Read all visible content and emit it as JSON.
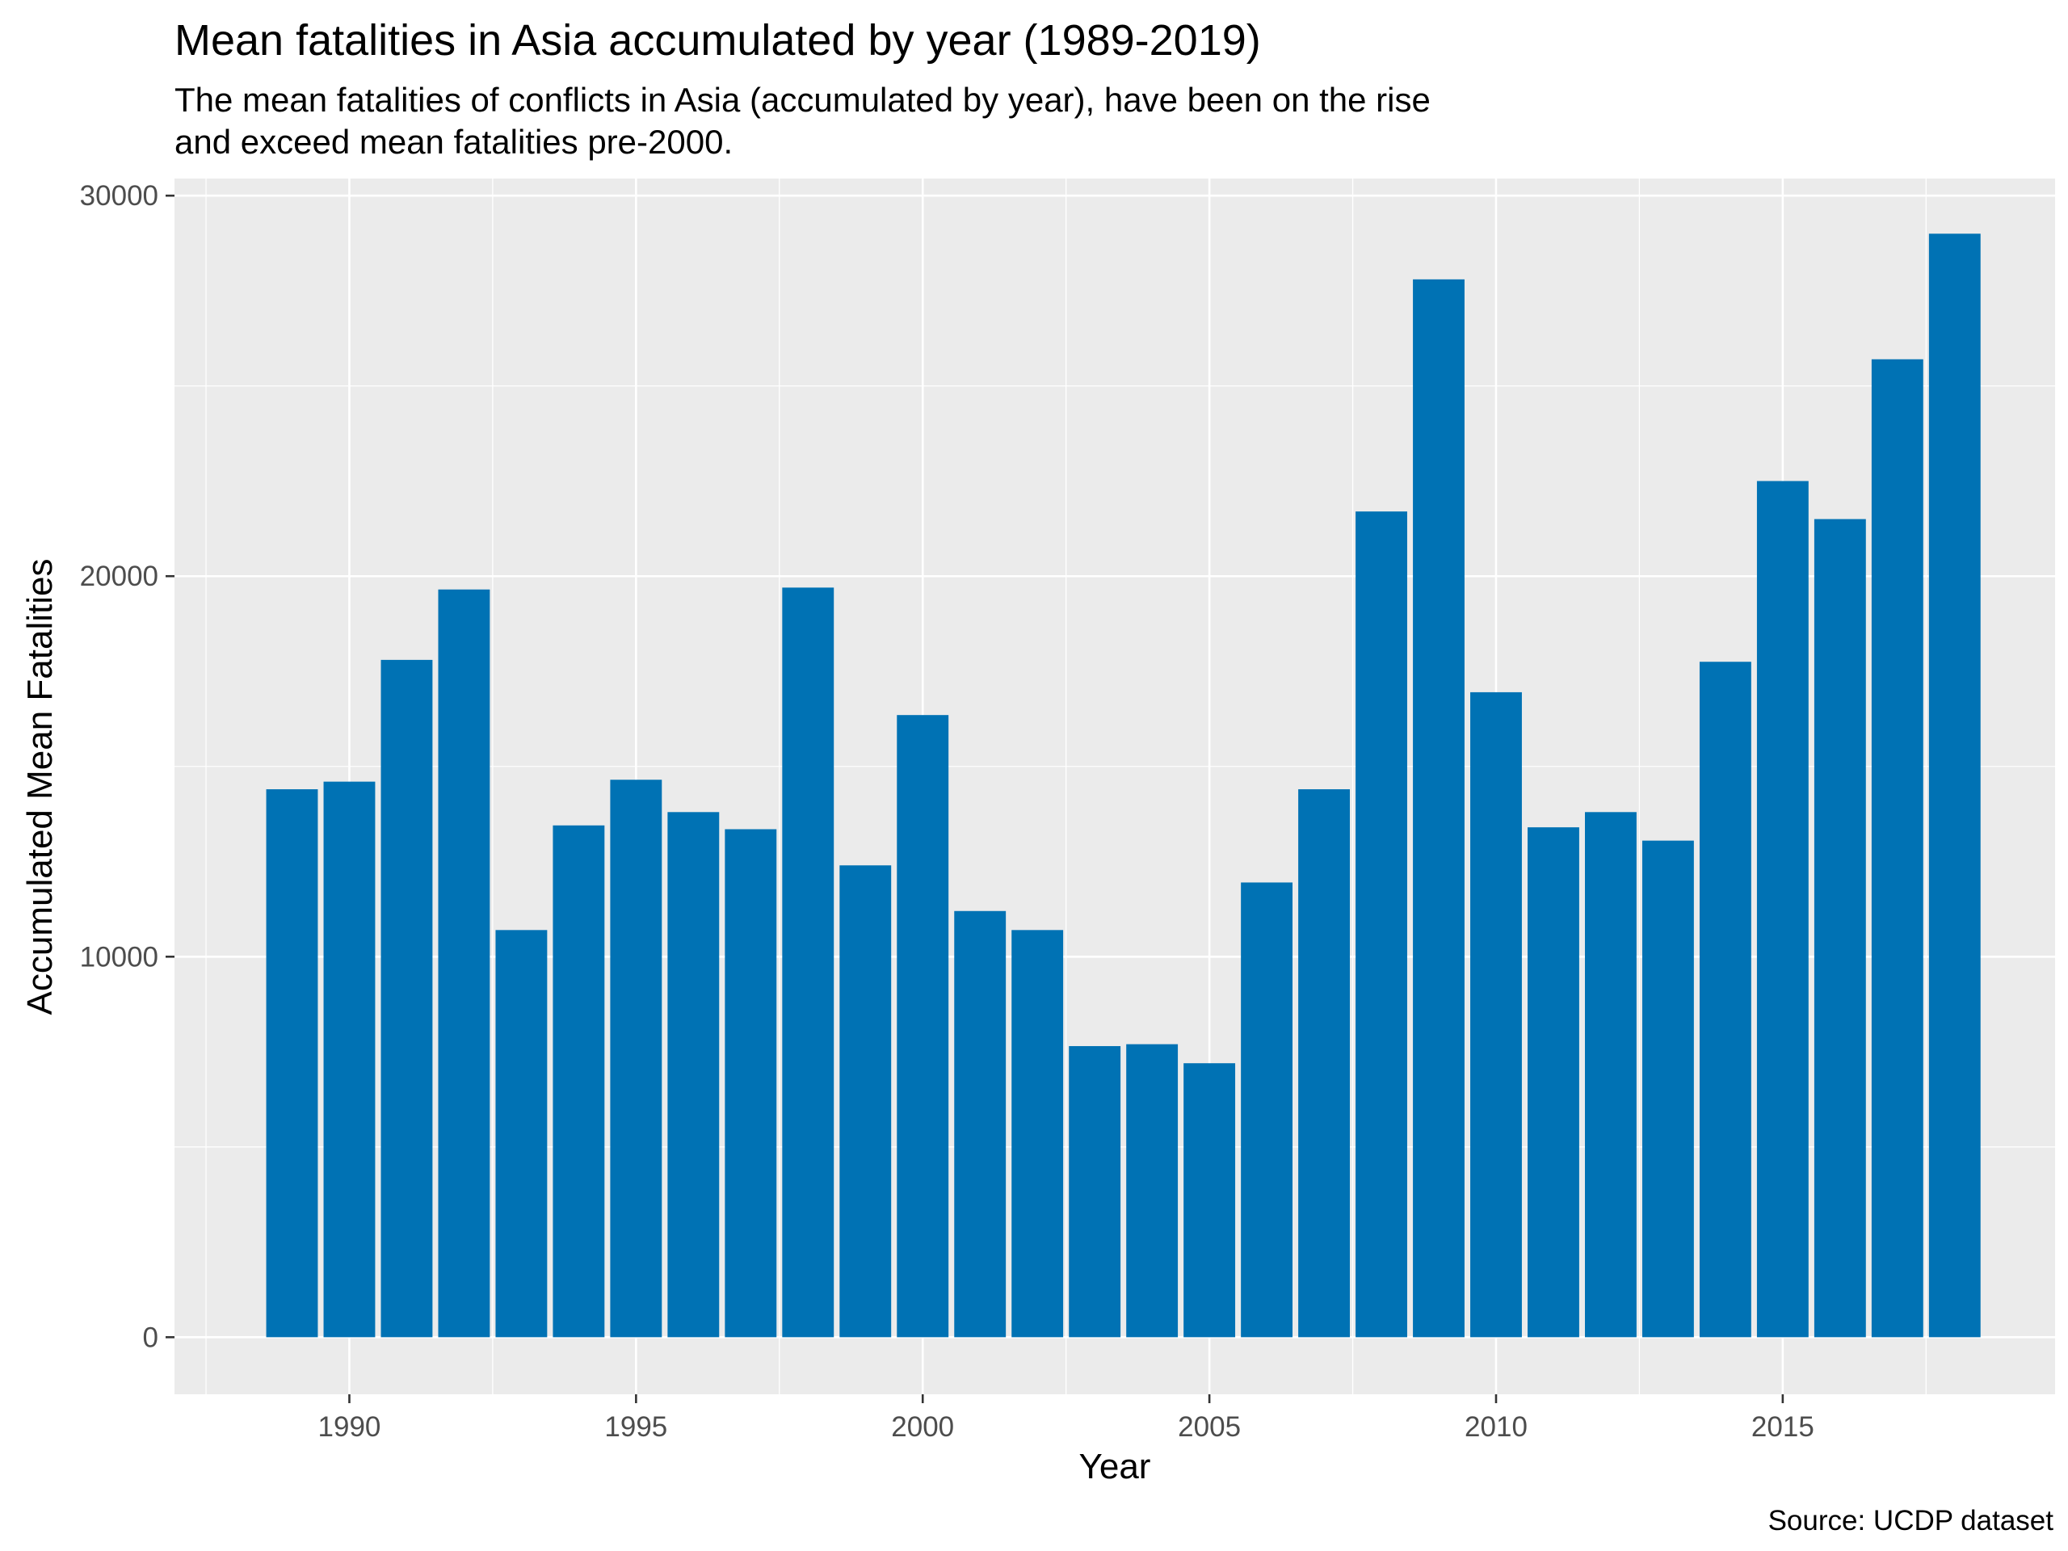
{
  "chart_data": {
    "type": "bar",
    "title": "Mean fatalities in Asia accumulated by year (1989-2019)",
    "subtitle": [
      "The mean fatalities of conflicts in Asia (accumulated by year), have been on the rise",
      "and exceed mean fatalities pre-2000."
    ],
    "caption": "Source: UCDP dataset",
    "xlabel": "Year",
    "ylabel": "Accumulated Mean Fatalities",
    "xlim": [
      1986.95,
      2019.75
    ],
    "ylim": [
      -1500,
      30450
    ],
    "x_ticks": [
      1990,
      1995,
      2000,
      2005,
      2010,
      2015
    ],
    "y_ticks": [
      0,
      10000,
      20000,
      30000
    ],
    "grid": true,
    "legend": "none",
    "bar_color": "#0072B4",
    "categories": [
      1989,
      1990,
      1991,
      1992,
      1993,
      1994,
      1995,
      1996,
      1997,
      1998,
      1999,
      2000,
      2001,
      2002,
      2003,
      2004,
      2005,
      2006,
      2007,
      2008,
      2009,
      2010,
      2011,
      2012,
      2013,
      2014,
      2015,
      2016,
      2017,
      2018
    ],
    "values": [
      14400,
      14600,
      17800,
      19650,
      10700,
      13450,
      14650,
      13800,
      13350,
      19700,
      12400,
      16350,
      11200,
      10700,
      7650,
      7700,
      7200,
      11950,
      14400,
      21700,
      27800,
      16950,
      13400,
      13800,
      13050,
      17750,
      22500,
      21500,
      25700,
      29000
    ]
  }
}
